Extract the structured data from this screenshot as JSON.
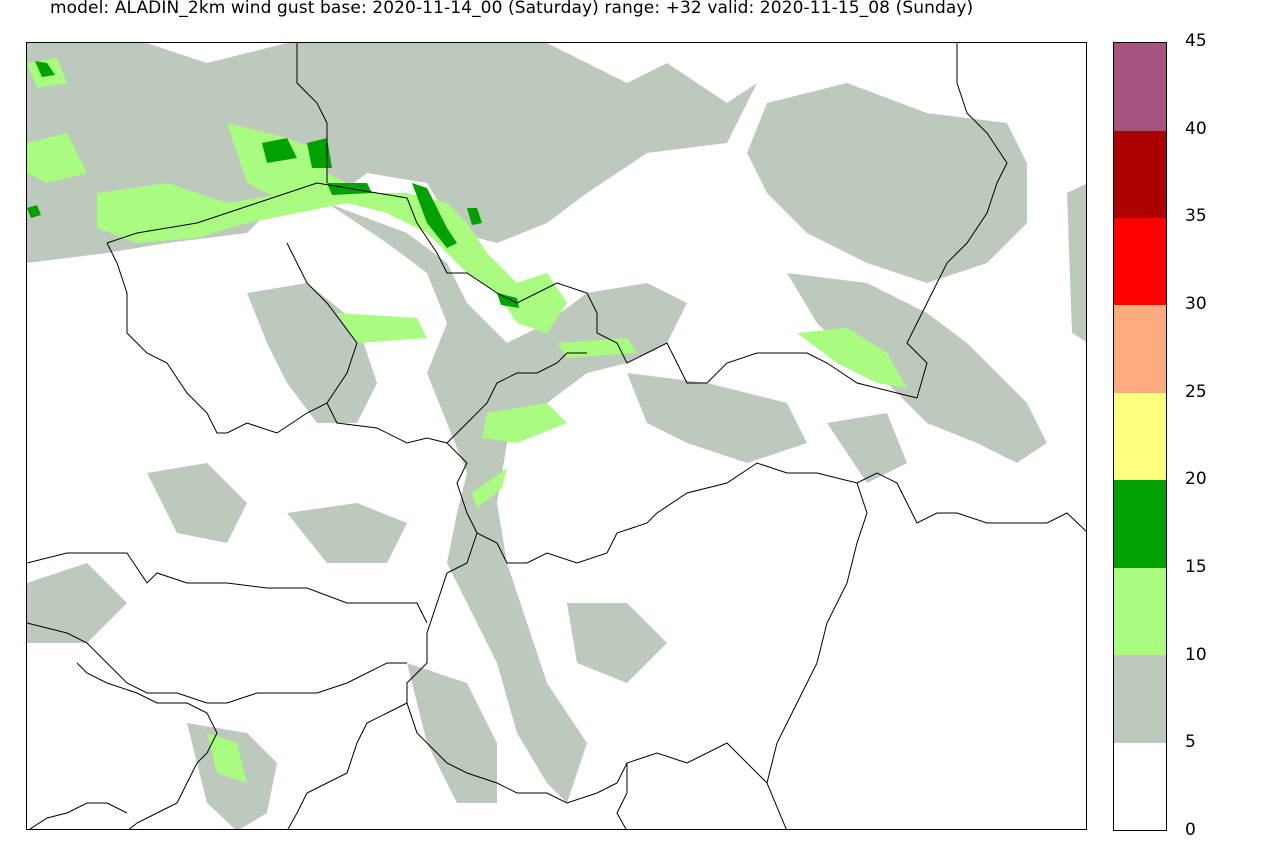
{
  "title": "model: ALADIN_2km wind gust  base:  2020-11-14_00 (Saturday) range: +32 valid: 2020-11-15_08 (Sunday)",
  "legend": {
    "labels": [
      "0",
      "5",
      "10",
      "15",
      "20",
      "25",
      "30",
      "35",
      "40",
      "45"
    ],
    "classes": [
      {
        "from": 0,
        "to": 5,
        "color": "#ffffff"
      },
      {
        "from": 5,
        "to": 10,
        "color": "#bdc9bd"
      },
      {
        "from": 10,
        "to": 15,
        "color": "#a9fc7f"
      },
      {
        "from": 15,
        "to": 20,
        "color": "#00a100"
      },
      {
        "from": 20,
        "to": 25,
        "color": "#ffff7f"
      },
      {
        "from": 25,
        "to": 30,
        "color": "#ffab7f"
      },
      {
        "from": 30,
        "to": 35,
        "color": "#ff0000"
      },
      {
        "from": 35,
        "to": 40,
        "color": "#ad0000"
      },
      {
        "from": 40,
        "to": 45,
        "color": "#a6537d"
      }
    ]
  }
}
